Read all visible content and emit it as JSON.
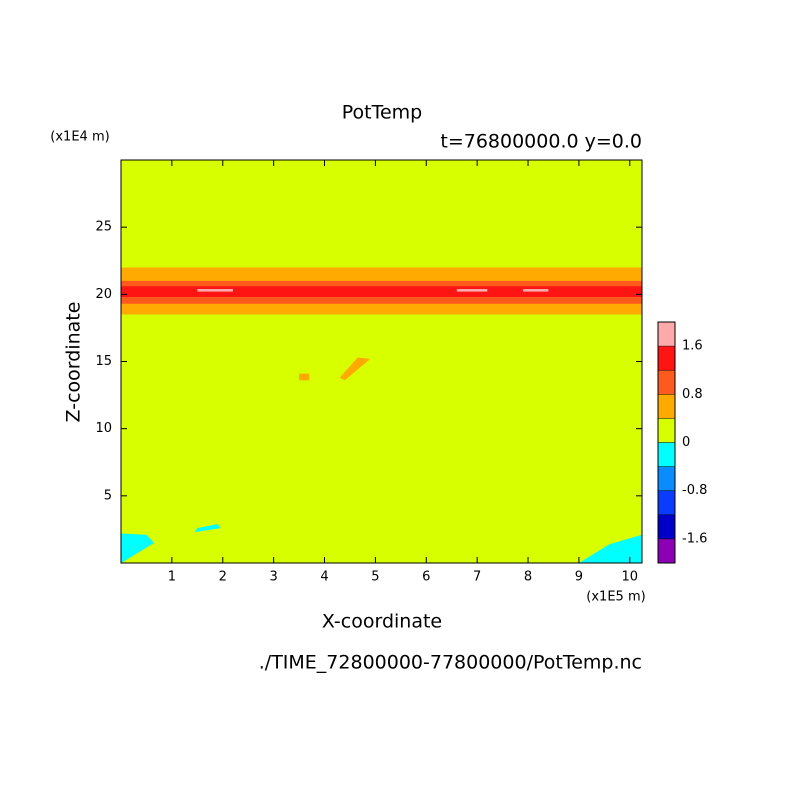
{
  "chart_data": {
    "type": "contour",
    "title": "PotTemp",
    "subtitle": "t=76800000.0 y=0.0",
    "x_label": "X-coordinate",
    "y_label": "Z-coordinate",
    "x_unit": "(x1E5 m)",
    "y_unit": "(x1E4 m)",
    "footer": "./TIME_72800000-77800000/PotTemp.nc",
    "xlim": [
      0,
      10.24
    ],
    "ylim": [
      0,
      30
    ],
    "xticks": [
      1,
      2,
      3,
      4,
      5,
      6,
      7,
      8,
      9,
      10
    ],
    "yticks": [
      5,
      10,
      15,
      20,
      25
    ],
    "levels": [
      -1.6,
      -1.2,
      -0.8,
      -0.4,
      0,
      0.4,
      0.8,
      1.2,
      1.6
    ],
    "colors": [
      "#8c00b4",
      "#0000c8",
      "#0a3cff",
      "#0a8cff",
      "#00ffff",
      "#d7ff00",
      "#ffaa00",
      "#ff5a1e",
      "#ff1414",
      "#ffaaaa"
    ],
    "colorbar_ticks": [
      -1.6,
      -0.8,
      0,
      0.8,
      1.6
    ],
    "regions": [
      {
        "band": 5,
        "x": [
          0,
          10.24,
          10.24,
          0
        ],
        "z": [
          0,
          0,
          30,
          30
        ]
      },
      {
        "band": 6,
        "x": [
          0,
          10.24,
          10.24,
          0
        ],
        "z": [
          18.5,
          18.5,
          22,
          22
        ]
      },
      {
        "band": 7,
        "x": [
          0,
          10.24,
          10.24,
          0
        ],
        "z": [
          19.3,
          19.3,
          21,
          21
        ]
      },
      {
        "band": 8,
        "x": [
          0,
          10.24,
          10.24,
          0
        ],
        "z": [
          19.8,
          19.8,
          20.6,
          20.6
        ]
      },
      {
        "band": 9,
        "x": [
          1.5,
          2.2,
          2.2,
          1.5
        ],
        "z": [
          20.2,
          20.2,
          20.4,
          20.4
        ]
      },
      {
        "band": 9,
        "x": [
          6.6,
          7.2,
          7.2,
          6.6
        ],
        "z": [
          20.2,
          20.2,
          20.4,
          20.4
        ]
      },
      {
        "band": 9,
        "x": [
          7.9,
          8.4,
          8.4,
          7.9
        ],
        "z": [
          20.2,
          20.2,
          20.4,
          20.4
        ]
      },
      {
        "band": 6,
        "x": [
          4.4,
          4.9,
          4.65,
          4.3
        ],
        "z": [
          13.6,
          15.2,
          15.3,
          13.8
        ]
      },
      {
        "band": 6,
        "x": [
          3.5,
          3.7,
          3.7,
          3.5
        ],
        "z": [
          13.6,
          13.6,
          14.1,
          14.1
        ]
      },
      {
        "band": 4,
        "x": [
          0,
          0.65,
          0.5,
          0
        ],
        "z": [
          0,
          1.5,
          2.1,
          2.2
        ]
      },
      {
        "band": 4,
        "x": [
          1.45,
          1.95,
          1.9,
          1.5
        ],
        "z": [
          2.3,
          2.6,
          2.9,
          2.6
        ]
      },
      {
        "band": 4,
        "x": [
          9.0,
          10.24,
          10.24,
          9.6
        ],
        "z": [
          0,
          0,
          2.1,
          1.4
        ]
      }
    ]
  }
}
